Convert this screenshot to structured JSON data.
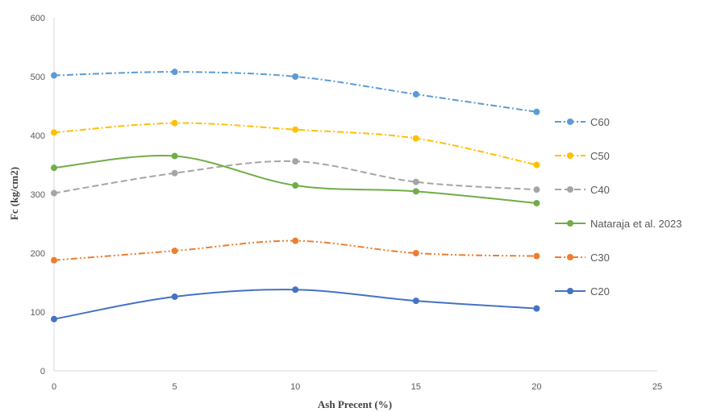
{
  "chart_data": {
    "type": "line",
    "xlabel": "Ash Precent (%)",
    "ylabel": "Fc (kg/cm2)",
    "xlim": [
      0,
      25
    ],
    "ylim": [
      0,
      600
    ],
    "x_ticks": [
      "0",
      "5",
      "10",
      "15",
      "20",
      "25"
    ],
    "y_ticks": [
      "0",
      "100",
      "200",
      "300",
      "400",
      "500",
      "600"
    ],
    "grid": false,
    "legend_position": "right",
    "x": [
      0,
      5,
      10,
      15,
      20
    ],
    "series": [
      {
        "name": "C60",
        "values": [
          502,
          508,
          500,
          470,
          440
        ],
        "color": "#5B9BD5",
        "style": "dash-dot"
      },
      {
        "name": "C50",
        "values": [
          405,
          421,
          410,
          395,
          350
        ],
        "color": "#FFC000",
        "style": "dash-dot"
      },
      {
        "name": "C40",
        "values": [
          302,
          336,
          356,
          321,
          308
        ],
        "color": "#A5A5A5",
        "style": "dash"
      },
      {
        "name": "Nataraja et al. 2023",
        "values": [
          345,
          365,
          315,
          305,
          285
        ],
        "color": "#70AD47",
        "style": "solid"
      },
      {
        "name": "C30",
        "values": [
          188,
          204,
          221,
          200,
          195
        ],
        "color": "#ED7D31",
        "style": "dash-dot-dot"
      },
      {
        "name": "C20",
        "values": [
          88,
          126,
          138,
          119,
          106
        ],
        "color": "#4472C4",
        "style": "solid"
      }
    ]
  }
}
